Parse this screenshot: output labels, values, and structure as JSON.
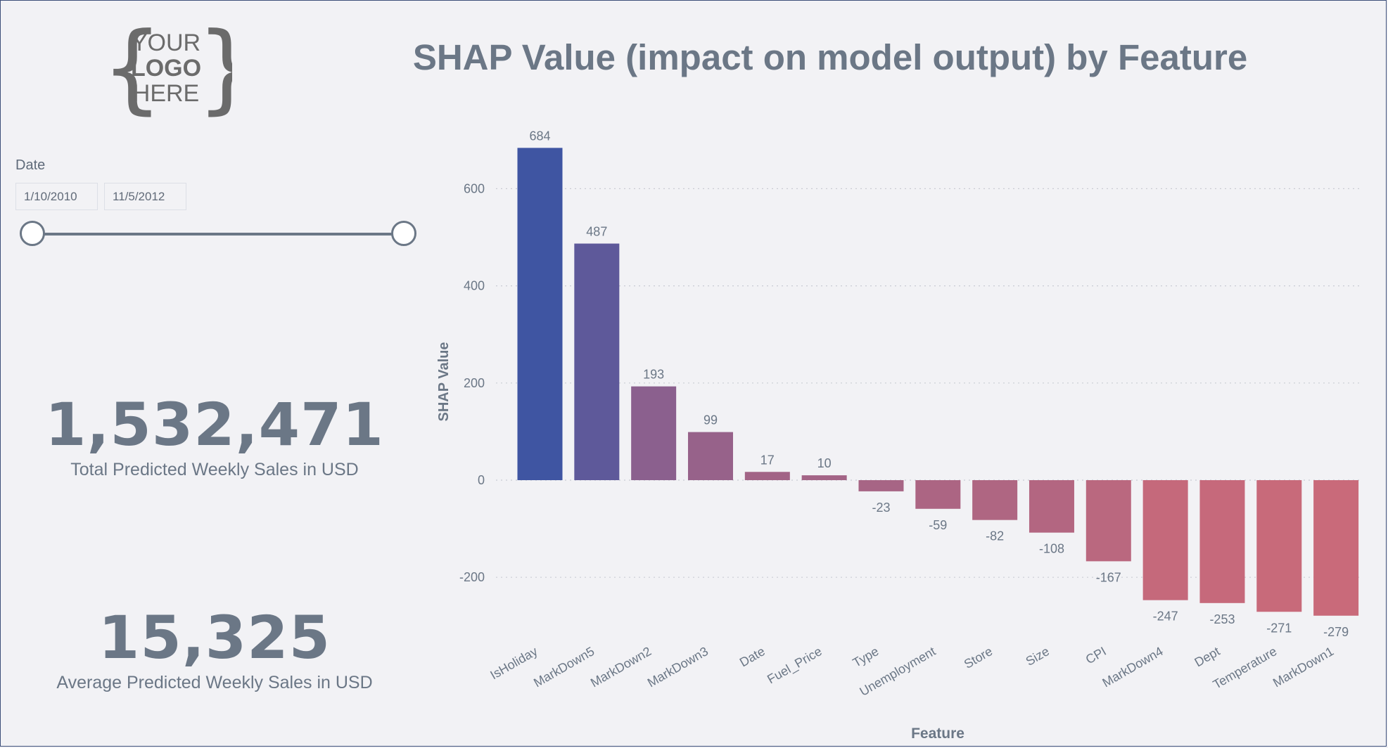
{
  "logo": {
    "line1": "YOUR",
    "line2": "LOGO",
    "line3": "HERE"
  },
  "title": "SHAP Value (impact on model output) by Feature",
  "slicer": {
    "label": "Date",
    "start": "1/10/2010",
    "end": "11/5/2012"
  },
  "kpis": {
    "total": {
      "value": "1,532,471",
      "label": "Total Predicted Weekly Sales in USD"
    },
    "average": {
      "value": "15,325",
      "label": "Average Predicted Weekly Sales in USD"
    }
  },
  "colors": {
    "positive_high": "#3f55a2",
    "negative_low": "#c96a7a",
    "text": "#6b7786",
    "grid": "#c9ccd3",
    "background": "#f2f2f5"
  },
  "chart_data": {
    "type": "bar",
    "categories": [
      "IsHoliday",
      "MarkDown5",
      "MarkDown2",
      "MarkDown3",
      "Date",
      "Fuel_Price",
      "Type",
      "Unemployment",
      "Store",
      "Size",
      "CPI",
      "MarkDown4",
      "Dept",
      "Temperature",
      "MarkDown1"
    ],
    "values": [
      684,
      487,
      193,
      99,
      17,
      10,
      -23,
      -59,
      -82,
      -108,
      -167,
      -247,
      -253,
      -271,
      -279
    ],
    "xlabel": "Feature",
    "ylabel": "SHAP Value",
    "yticks": [
      -200,
      0,
      200,
      400,
      600
    ],
    "ylim": [
      -300,
      700
    ],
    "grid": true,
    "data_labels": true
  }
}
